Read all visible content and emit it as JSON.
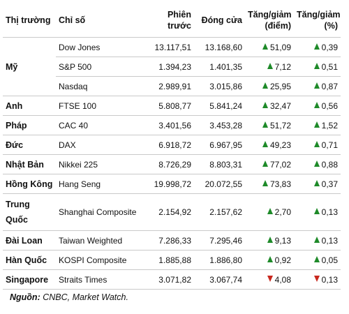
{
  "headers": {
    "market": "Thị trường",
    "index": "Chỉ số",
    "prev_line1": "Phiên",
    "prev_line2": "trước",
    "close": "Đóng cửa",
    "chg_pts_line1": "Tăng/giảm",
    "chg_pts_line2": "(điểm)",
    "chg_pct_line1": "Tăng/giảm",
    "chg_pct_line2": "(%)"
  },
  "groups": [
    {
      "market": "Mỹ",
      "rows": [
        {
          "index": "Dow Jones",
          "prev": "13.117,51",
          "close": "13.168,60",
          "chg_pts": "51,09",
          "chg_pct": "0,39",
          "dir": "up"
        },
        {
          "index": "S&P 500",
          "prev": "1.394,23",
          "close": "1.401,35",
          "chg_pts": "7,12",
          "chg_pct": "0,51",
          "dir": "up"
        },
        {
          "index": "Nasdaq",
          "prev": "2.989,91",
          "close": "3.015,86",
          "chg_pts": "25,95",
          "chg_pct": "0,87",
          "dir": "up"
        }
      ]
    },
    {
      "market": "Anh",
      "rows": [
        {
          "index": "FTSE 100",
          "prev": "5.808,77",
          "close": "5.841,24",
          "chg_pts": "32,47",
          "chg_pct": "0,56",
          "dir": "up"
        }
      ]
    },
    {
      "market": "Pháp",
      "rows": [
        {
          "index": "CAC 40",
          "prev": "3.401,56",
          "close": "3.453,28",
          "chg_pts": "51,72",
          "chg_pct": "1,52",
          "dir": "up"
        }
      ]
    },
    {
      "market": "Đức",
      "rows": [
        {
          "index": "DAX",
          "prev": "6.918,72",
          "close": "6.967,95",
          "chg_pts": "49,23",
          "chg_pct": "0,71",
          "dir": "up"
        }
      ]
    },
    {
      "market": "Nhật Bản",
      "rows": [
        {
          "index": "Nikkei 225",
          "prev": "8.726,29",
          "close": "8.803,31",
          "chg_pts": "77,02",
          "chg_pct": "0,88",
          "dir": "up"
        }
      ]
    },
    {
      "market": "Hồng Kông",
      "rows": [
        {
          "index": "Hang Seng",
          "prev": "19.998,72",
          "close": "20.072,55",
          "chg_pts": "73,83",
          "chg_pct": "0,37",
          "dir": "up"
        }
      ]
    },
    {
      "market": "Trung Quốc",
      "rows": [
        {
          "index": "Shanghai Composite",
          "prev": "2.154,92",
          "close": "2.157,62",
          "chg_pts": "2,70",
          "chg_pct": "0,13",
          "dir": "up"
        }
      ]
    },
    {
      "market": "Đài Loan",
      "rows": [
        {
          "index": "Taiwan Weighted",
          "prev": "7.286,33",
          "close": "7.295,46",
          "chg_pts": "9,13",
          "chg_pct": "0,13",
          "dir": "up"
        }
      ]
    },
    {
      "market": "Hàn Quốc",
      "rows": [
        {
          "index": "KOSPI Composite",
          "prev": "1.885,88",
          "close": "1.886,80",
          "chg_pts": "0,92",
          "chg_pct": "0,05",
          "dir": "up"
        }
      ]
    },
    {
      "market": "Singapore",
      "rows": [
        {
          "index": "Straits Times",
          "prev": "3.071,82",
          "close": "3.067,74",
          "chg_pts": "4,08",
          "chg_pct": "0,13",
          "dir": "down"
        }
      ]
    }
  ],
  "source": {
    "label": "Nguồn:",
    "text": " CNBC, Market Watch."
  },
  "colors": {
    "up": "#1e8a29",
    "down": "#c8281e"
  },
  "icons": {
    "up": "arrow-up-icon",
    "down": "arrow-down-icon"
  }
}
